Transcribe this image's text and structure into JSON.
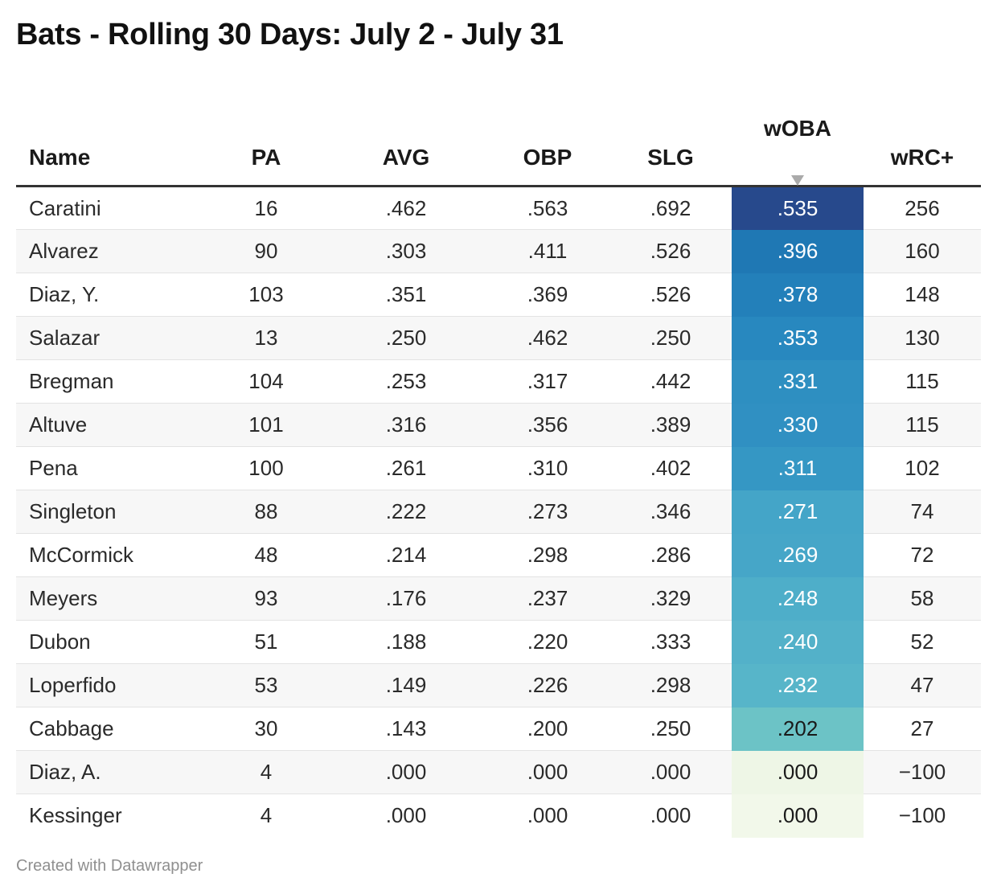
{
  "title": "Bats - Rolling 30 Days: July 2 - July 31",
  "footer": "Created with Datawrapper",
  "chart_data": {
    "type": "table",
    "title": "Bats - Rolling 30 Days: July 2 - July 31",
    "columns": [
      "Name",
      "PA",
      "AVG",
      "OBP",
      "SLG",
      "wOBA",
      "wRC+"
    ],
    "sorted_by": "wOBA",
    "sort_direction": "descending",
    "rows": [
      {
        "name": "Caratini",
        "pa": "16",
        "avg": ".462",
        "obp": ".563",
        "slg": ".692",
        "woba": ".535",
        "wrc": "256",
        "woba_color": "#27498c",
        "woba_text": "#ffffff"
      },
      {
        "name": "Alvarez",
        "pa": "90",
        "avg": ".303",
        "obp": ".411",
        "slg": ".526",
        "woba": ".396",
        "wrc": "160",
        "woba_color": "#1f78b4",
        "woba_text": "#ffffff"
      },
      {
        "name": "Diaz, Y.",
        "pa": "103",
        "avg": ".351",
        "obp": ".369",
        "slg": ".526",
        "woba": ".378",
        "wrc": "148",
        "woba_color": "#2380ba",
        "woba_text": "#ffffff"
      },
      {
        "name": "Salazar",
        "pa": "13",
        "avg": ".250",
        "obp": ".462",
        "slg": ".250",
        "woba": ".353",
        "wrc": "130",
        "woba_color": "#2888bf",
        "woba_text": "#ffffff"
      },
      {
        "name": "Bregman",
        "pa": "104",
        "avg": ".253",
        "obp": ".317",
        "slg": ".442",
        "woba": ".331",
        "wrc": "115",
        "woba_color": "#2e8fc1",
        "woba_text": "#ffffff"
      },
      {
        "name": "Altuve",
        "pa": "101",
        "avg": ".316",
        "obp": ".356",
        "slg": ".389",
        "woba": ".330",
        "wrc": "115",
        "woba_color": "#3090c2",
        "woba_text": "#ffffff"
      },
      {
        "name": "Pena",
        "pa": "100",
        "avg": ".261",
        "obp": ".310",
        "slg": ".402",
        "woba": ".311",
        "wrc": "102",
        "woba_color": "#3597c4",
        "woba_text": "#ffffff"
      },
      {
        "name": "Singleton",
        "pa": "88",
        "avg": ".222",
        "obp": ".273",
        "slg": ".346",
        "woba": ".271",
        "wrc": "74",
        "woba_color": "#44a5c8",
        "woba_text": "#ffffff"
      },
      {
        "name": "McCormick",
        "pa": "48",
        "avg": ".214",
        "obp": ".298",
        "slg": ".286",
        "woba": ".269",
        "wrc": "72",
        "woba_color": "#46a6c8",
        "woba_text": "#ffffff"
      },
      {
        "name": "Meyers",
        "pa": "93",
        "avg": ".176",
        "obp": ".237",
        "slg": ".329",
        "woba": ".248",
        "wrc": "58",
        "woba_color": "#4eaec9",
        "woba_text": "#ffffff"
      },
      {
        "name": "Dubon",
        "pa": "51",
        "avg": ".188",
        "obp": ".220",
        "slg": ".333",
        "woba": ".240",
        "wrc": "52",
        "woba_color": "#53b1c9",
        "woba_text": "#ffffff"
      },
      {
        "name": "Loperfido",
        "pa": "53",
        "avg": ".149",
        "obp": ".226",
        "slg": ".298",
        "woba": ".232",
        "wrc": "47",
        "woba_color": "#57b5c9",
        "woba_text": "#ffffff"
      },
      {
        "name": "Cabbage",
        "pa": "30",
        "avg": ".143",
        "obp": ".200",
        "slg": ".250",
        "woba": ".202",
        "wrc": "27",
        "woba_color": "#6cc3c6",
        "woba_text": "#1a1a1a"
      },
      {
        "name": "Diaz, A.",
        "pa": "4",
        "avg": ".000",
        "obp": ".000",
        "slg": ".000",
        "woba": ".000",
        "wrc": "−100",
        "woba_color": "#eef6e6",
        "woba_text": "#1a1a1a"
      },
      {
        "name": "Kessinger",
        "pa": "4",
        "avg": ".000",
        "obp": ".000",
        "slg": ".000",
        "woba": ".000",
        "wrc": "−100",
        "woba_color": "#f2f8ea",
        "woba_text": "#1a1a1a"
      }
    ]
  }
}
